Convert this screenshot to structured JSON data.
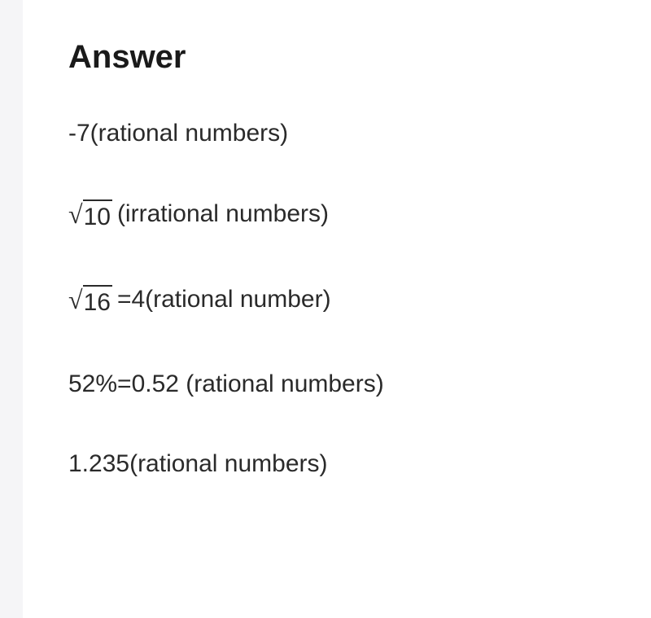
{
  "heading": {
    "text": "Answer",
    "fontsize": 40,
    "color": "#1a1a1a",
    "fontweight": 700
  },
  "body": {
    "fontsize": 30,
    "color": "#2a2a2a",
    "line_spacing": 64
  },
  "background_color": "#f5f5f7",
  "card_background": "#ffffff",
  "lines": [
    {
      "type": "plain",
      "text": "-7(rational numbers)"
    },
    {
      "type": "sqrt",
      "radicand": "10",
      "suffix": " (irrational numbers)"
    },
    {
      "type": "sqrt",
      "radicand": "16",
      "suffix": " =4(rational number)"
    },
    {
      "type": "plain",
      "text": "52%=0.52 (rational numbers)"
    },
    {
      "type": "plain",
      "text": "1.235(rational numbers)"
    }
  ]
}
